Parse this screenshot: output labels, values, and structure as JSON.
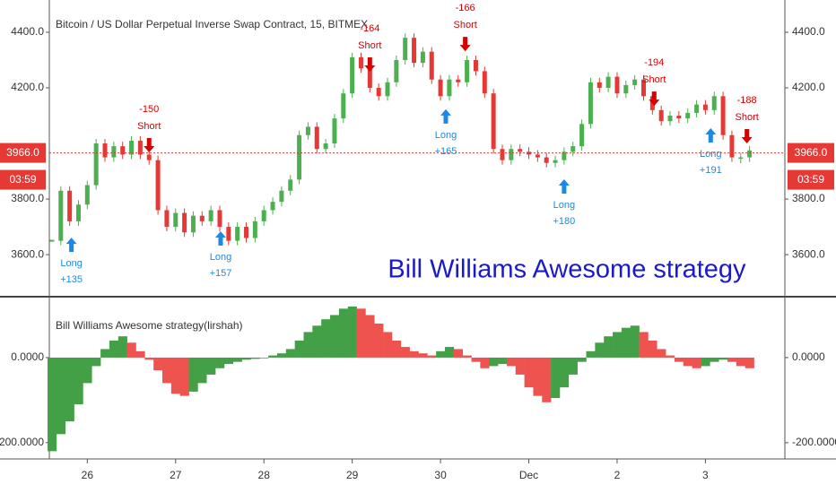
{
  "chart_data": [
    {
      "type": "line",
      "title": "Bitcoin / US Dollar Perpetual Inverse Swap Contract, 15, BITMEX",
      "watermark": "Bill Williams Awesome strategy",
      "x": [
        25.6,
        25.7,
        25.8,
        25.9,
        26.0,
        26.1,
        26.2,
        26.3,
        26.4,
        26.5,
        26.6,
        26.7,
        26.8,
        26.9,
        27.0,
        27.1,
        27.2,
        27.3,
        27.4,
        27.5,
        27.6,
        27.7,
        27.8,
        27.9,
        28.0,
        28.1,
        28.2,
        28.3,
        28.4,
        28.5,
        28.6,
        28.7,
        28.8,
        28.9,
        29.0,
        29.1,
        29.2,
        29.3,
        29.4,
        29.5,
        29.6,
        29.7,
        29.8,
        29.9,
        30.0,
        30.1,
        30.2,
        30.3,
        30.4,
        30.5,
        30.6,
        30.7,
        30.8,
        30.9,
        31.0,
        31.1,
        31.2,
        31.3,
        31.4,
        31.5,
        31.6,
        31.7,
        31.8,
        31.9,
        32.0,
        32.1,
        32.2,
        32.3,
        32.4,
        32.5,
        32.6,
        32.7,
        32.8,
        32.9,
        33.0,
        33.1,
        33.2,
        33.3,
        33.4,
        33.5
      ],
      "values": [
        3650,
        3830,
        3720,
        3780,
        3850,
        4000,
        3950,
        3990,
        3960,
        4010,
        3960,
        3940,
        3760,
        3700,
        3750,
        3680,
        3740,
        3720,
        3760,
        3700,
        3650,
        3700,
        3660,
        3720,
        3760,
        3790,
        3830,
        3870,
        4030,
        4060,
        3980,
        4000,
        4090,
        4180,
        4310,
        4270,
        4200,
        4170,
        4220,
        4300,
        4380,
        4290,
        4330,
        4230,
        4170,
        4230,
        4220,
        4300,
        4260,
        4180,
        3980,
        3940,
        3980,
        3970,
        3960,
        3950,
        3930,
        3940,
        3970,
        3990,
        4070,
        4220,
        4200,
        4240,
        4180,
        4210,
        4230,
        4170,
        4120,
        4080,
        4100,
        4090,
        4110,
        4140,
        4120,
        4170,
        4030,
        3950,
        3950,
        3975
      ],
      "up_color": "#4caf50",
      "down_color": "#e53935",
      "xlim": [
        25.57,
        33.9
      ],
      "ylim": [
        3452,
        4516
      ],
      "yticks": [
        {
          "value": 3600,
          "label": "3600.0"
        },
        {
          "value": 3800,
          "label": "3800.0"
        },
        {
          "value": 4200,
          "label": "4200.0"
        },
        {
          "value": 4400,
          "label": "4400.0"
        }
      ],
      "last_price": {
        "value": 3966,
        "label": "3966.0"
      },
      "countdown": "03:59",
      "signals": [
        {
          "x": 25.82,
          "price": 3661,
          "side": "Long",
          "label": "+135"
        },
        {
          "x": 26.7,
          "price": 3968,
          "side": "Short",
          "label": "-150"
        },
        {
          "x": 27.51,
          "price": 3684,
          "side": "Long",
          "label": "+157"
        },
        {
          "x": 29.2,
          "price": 4258,
          "side": "Short",
          "label": "-164"
        },
        {
          "x": 30.06,
          "price": 4123,
          "side": "Long",
          "label": "+165"
        },
        {
          "x": 30.28,
          "price": 4332,
          "side": "Short",
          "label": "-166"
        },
        {
          "x": 31.4,
          "price": 3871,
          "side": "Long",
          "label": "+180"
        },
        {
          "x": 32.42,
          "price": 4135,
          "side": "Short",
          "label": "-194"
        },
        {
          "x": 33.06,
          "price": 4055,
          "side": "Long",
          "label": "+191"
        },
        {
          "x": 33.47,
          "price": 4000,
          "side": "Short",
          "label": "-188"
        }
      ]
    },
    {
      "type": "bar",
      "title": "Bill Williams Awesome strategy(lirshah)",
      "x": [
        25.6,
        25.7,
        25.8,
        25.9,
        26.0,
        26.1,
        26.2,
        26.3,
        26.4,
        26.5,
        26.6,
        26.7,
        26.8,
        26.9,
        27.0,
        27.1,
        27.2,
        27.3,
        27.4,
        27.5,
        27.6,
        27.7,
        27.8,
        27.9,
        28.0,
        28.1,
        28.2,
        28.3,
        28.4,
        28.5,
        28.6,
        28.7,
        28.8,
        28.9,
        29.0,
        29.1,
        29.2,
        29.3,
        29.4,
        29.5,
        29.6,
        29.7,
        29.8,
        29.9,
        30.0,
        30.1,
        30.2,
        30.3,
        30.4,
        30.5,
        30.6,
        30.7,
        30.8,
        30.9,
        31.0,
        31.1,
        31.2,
        31.3,
        31.4,
        31.5,
        31.6,
        31.7,
        31.8,
        31.9,
        32.0,
        32.1,
        32.2,
        32.3,
        32.4,
        32.5,
        32.6,
        32.7,
        32.8,
        32.9,
        33.0,
        33.1,
        33.2,
        33.3,
        33.4,
        33.5
      ],
      "values": [
        -220,
        -180,
        -150,
        -110,
        -60,
        -20,
        20,
        40,
        50,
        35,
        15,
        -5,
        -30,
        -60,
        -85,
        -90,
        -80,
        -60,
        -40,
        -25,
        -15,
        -10,
        -5,
        -3,
        0,
        5,
        10,
        20,
        40,
        60,
        75,
        90,
        100,
        115,
        120,
        115,
        100,
        80,
        60,
        40,
        25,
        15,
        10,
        5,
        15,
        25,
        20,
        5,
        -10,
        -25,
        -20,
        -15,
        -20,
        -40,
        -70,
        -90,
        -105,
        -95,
        -70,
        -40,
        -10,
        15,
        35,
        50,
        60,
        70,
        75,
        60,
        40,
        20,
        5,
        -10,
        -20,
        -25,
        -20,
        -10,
        -5,
        -10,
        -20,
        -25
      ],
      "up_color": "#43a047",
      "down_color": "#ef5350",
      "xlim": [
        25.57,
        33.9
      ],
      "ylim": [
        -234,
        141
      ],
      "yticks": [
        {
          "value": -200,
          "label": "-200.0000"
        },
        {
          "value": 0,
          "label": "0.0000"
        }
      ],
      "xticks": [
        26,
        27,
        28,
        29,
        30,
        {
          "value": 31,
          "label": "Dec"
        },
        {
          "value": 32,
          "label": "2"
        },
        {
          "value": 33,
          "label": "3"
        }
      ]
    }
  ]
}
